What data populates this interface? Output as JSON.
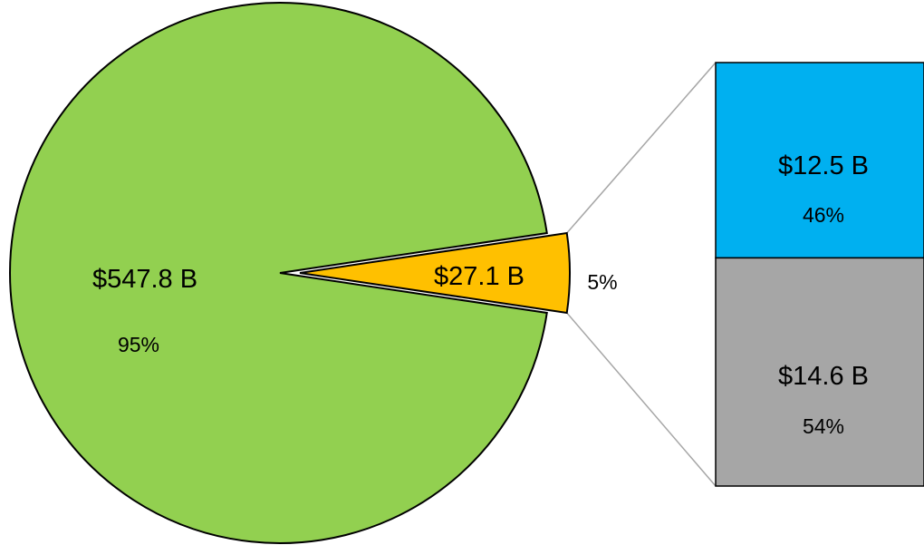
{
  "chart_data": {
    "type": "bar-of-pie",
    "title": "",
    "pie": {
      "slices": [
        {
          "value_label": "$547.8 B",
          "value": 547.8,
          "percent_label": "95%",
          "percent": 95,
          "color": "#92d050"
        },
        {
          "value_label": "$27.1 B",
          "value": 27.1,
          "percent_label": "5%",
          "percent": 5,
          "color": "#ffc000",
          "exploded": true
        }
      ]
    },
    "bar": {
      "segments": [
        {
          "value_label": "$12.5 B",
          "value": 12.5,
          "percent_label": "46%",
          "percent": 46,
          "color": "#00b0f0"
        },
        {
          "value_label": "$14.6 B",
          "value": 14.6,
          "percent_label": "54%",
          "percent": 54,
          "color": "#a6a6a6"
        }
      ]
    },
    "legend": "none"
  }
}
